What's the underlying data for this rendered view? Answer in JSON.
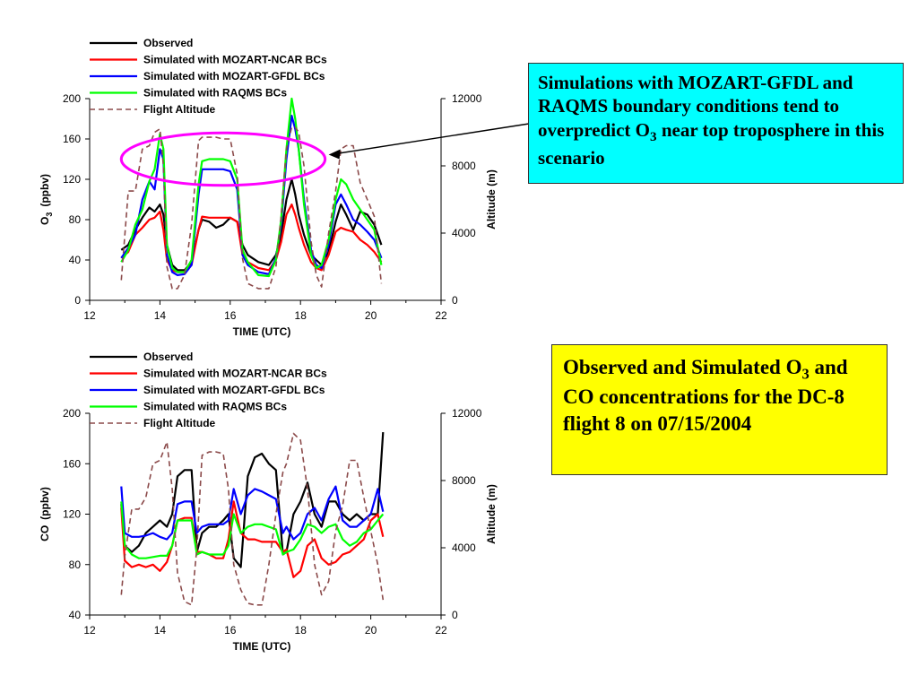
{
  "colors": {
    "observed": "#000000",
    "ncar": "#ff0000",
    "gfdl": "#0000ff",
    "raqms": "#00ff00",
    "altitude": "#8b4a4a",
    "ellipse": "#ff00ff",
    "cyan_box": "#00ffff",
    "yellow_box": "#ffff00"
  },
  "annotations": {
    "cyan_box": {
      "text_before": "Simulations with MOZART-GFDL and RAQMS boundary conditions tend to overpredict O",
      "sub": "3",
      "text_after": " near top troposphere in this scenario"
    },
    "yellow_box": {
      "text_before": "Observed and Simulated O",
      "sub": "3",
      "text_after": " and CO concentrations for the DC-8 flight 8 on 07/15/2004"
    }
  },
  "chart_data": [
    {
      "type": "line",
      "xlabel": "TIME (UTC)",
      "ylabel": "O",
      "ylabel_sub": "3",
      "ylabel_unit": "(ppbv)",
      "y2label": "Altitude (m)",
      "xlim": [
        12,
        22
      ],
      "xticks": [
        12,
        14,
        16,
        18,
        20,
        22
      ],
      "ylim": [
        0,
        200
      ],
      "yticks": [
        0,
        40,
        80,
        120,
        160,
        200
      ],
      "y2lim": [
        0,
        12000
      ],
      "y2ticks": [
        0,
        4000,
        8000,
        12000
      ],
      "legend": [
        "Observed",
        "Simulated with MOZART-NCAR BCs",
        "Simulated with MOZART-GFDL BCs",
        "Simulated with RAQMS BCs",
        "Flight Altitude"
      ],
      "highlight_ellipse": {
        "cx": 15.8,
        "cy": 140,
        "rx": 2.9,
        "ry": 26
      },
      "x": [
        12.9,
        13.1,
        13.3,
        13.5,
        13.7,
        13.85,
        14.0,
        14.1,
        14.2,
        14.35,
        14.5,
        14.7,
        14.9,
        15.1,
        15.2,
        15.4,
        15.6,
        15.8,
        16.0,
        16.2,
        16.35,
        16.5,
        16.8,
        17.1,
        17.3,
        17.45,
        17.6,
        17.75,
        17.85,
        17.95,
        18.1,
        18.3,
        18.45,
        18.6,
        18.8,
        19.0,
        19.15,
        19.3,
        19.5,
        19.7,
        19.9,
        20.1,
        20.3
      ],
      "series": [
        {
          "name": "Observed",
          "values": [
            50,
            55,
            70,
            82,
            92,
            88,
            95,
            85,
            55,
            35,
            30,
            30,
            38,
            70,
            80,
            78,
            72,
            75,
            82,
            78,
            55,
            45,
            38,
            35,
            45,
            65,
            100,
            120,
            105,
            85,
            65,
            45,
            40,
            35,
            48,
            78,
            95,
            85,
            70,
            88,
            85,
            75,
            55
          ]
        },
        {
          "name": "Simulated with MOZART-NCAR BCs",
          "values": [
            42,
            48,
            65,
            72,
            80,
            82,
            88,
            70,
            40,
            30,
            28,
            28,
            35,
            70,
            83,
            82,
            82,
            82,
            82,
            78,
            45,
            38,
            32,
            30,
            40,
            58,
            85,
            95,
            85,
            72,
            55,
            38,
            32,
            30,
            45,
            68,
            72,
            70,
            68,
            60,
            55,
            48,
            38
          ]
        },
        {
          "name": "Simulated with MOZART-GFDL BCs",
          "values": [
            42,
            52,
            65,
            100,
            118,
            110,
            150,
            140,
            45,
            28,
            25,
            26,
            35,
            105,
            130,
            130,
            130,
            130,
            128,
            110,
            45,
            35,
            28,
            26,
            42,
            75,
            140,
            183,
            170,
            150,
            100,
            50,
            35,
            32,
            55,
            95,
            105,
            95,
            80,
            75,
            68,
            60,
            42
          ]
        },
        {
          "name": "Simulated with RAQMS BCs",
          "values": [
            38,
            50,
            75,
            90,
            118,
            130,
            165,
            150,
            55,
            32,
            28,
            28,
            40,
            115,
            138,
            140,
            140,
            140,
            138,
            120,
            50,
            38,
            25,
            24,
            40,
            80,
            150,
            200,
            180,
            150,
            95,
            45,
            32,
            35,
            60,
            100,
            120,
            115,
            100,
            90,
            80,
            70,
            35
          ]
        },
        {
          "name": "Flight Altitude",
          "axis": "y2",
          "values": [
            1200,
            6500,
            6500,
            9000,
            9200,
            10000,
            10200,
            8000,
            2000,
            700,
            700,
            1500,
            4500,
            9500,
            9700,
            9700,
            9700,
            9600,
            9600,
            7500,
            2500,
            1000,
            700,
            700,
            2000,
            5000,
            9000,
            10300,
            10300,
            10000,
            8000,
            3500,
            1500,
            800,
            4000,
            6500,
            9000,
            9200,
            9200,
            7000,
            6000,
            5000,
            1000
          ]
        }
      ]
    },
    {
      "type": "line",
      "xlabel": "TIME (UTC)",
      "ylabel": "CO",
      "ylabel_unit": "(ppbv)",
      "y2label": "Altitude (m)",
      "xlim": [
        12,
        22
      ],
      "xticks": [
        12,
        14,
        16,
        18,
        20,
        22
      ],
      "ylim": [
        40,
        200
      ],
      "yticks": [
        40,
        80,
        120,
        160,
        200
      ],
      "y2lim": [
        0,
        12000
      ],
      "y2ticks": [
        0,
        4000,
        8000,
        12000
      ],
      "legend": [
        "Observed",
        "Simulated with MOZART-NCAR BCs",
        "Simulated with MOZART-GFDL BCs",
        "Simulated with RAQMS BCs",
        "Flight Altitude"
      ],
      "x": [
        12.9,
        13.0,
        13.2,
        13.4,
        13.6,
        13.8,
        14.0,
        14.2,
        14.35,
        14.5,
        14.7,
        14.9,
        15.05,
        15.2,
        15.4,
        15.6,
        15.8,
        15.95,
        16.1,
        16.3,
        16.5,
        16.7,
        16.9,
        17.1,
        17.3,
        17.5,
        17.6,
        17.8,
        18.0,
        18.2,
        18.4,
        18.6,
        18.8,
        19.0,
        19.2,
        19.4,
        19.6,
        19.8,
        20.0,
        20.2,
        20.35
      ],
      "series": [
        {
          "name": "Observed",
          "values": [
            128,
            95,
            90,
            95,
            105,
            110,
            115,
            110,
            120,
            150,
            155,
            155,
            90,
            105,
            110,
            110,
            115,
            120,
            85,
            78,
            150,
            165,
            168,
            160,
            155,
            88,
            90,
            120,
            130,
            145,
            120,
            110,
            130,
            130,
            120,
            115,
            120,
            115,
            120,
            120,
            185
          ]
        },
        {
          "name": "Simulated with MOZART-NCAR BCs",
          "values": [
            125,
            83,
            78,
            80,
            78,
            80,
            75,
            82,
            95,
            115,
            117,
            117,
            90,
            90,
            88,
            85,
            85,
            100,
            130,
            105,
            100,
            100,
            98,
            98,
            98,
            90,
            92,
            70,
            75,
            95,
            100,
            85,
            80,
            82,
            88,
            90,
            95,
            100,
            115,
            120,
            102
          ]
        },
        {
          "name": "Simulated with MOZART-GFDL BCs",
          "values": [
            142,
            105,
            102,
            102,
            103,
            105,
            102,
            100,
            105,
            128,
            130,
            130,
            105,
            110,
            112,
            112,
            112,
            115,
            140,
            120,
            135,
            140,
            138,
            135,
            132,
            105,
            110,
            100,
            105,
            120,
            125,
            115,
            132,
            142,
            115,
            110,
            110,
            115,
            120,
            140,
            122
          ]
        },
        {
          "name": "Simulated with RAQMS BCs",
          "values": [
            130,
            95,
            88,
            85,
            85,
            86,
            87,
            87,
            95,
            115,
            115,
            115,
            88,
            90,
            88,
            88,
            88,
            95,
            120,
            105,
            110,
            112,
            112,
            110,
            108,
            88,
            90,
            92,
            100,
            112,
            110,
            105,
            110,
            112,
            100,
            95,
            98,
            105,
            108,
            115,
            120
          ]
        },
        {
          "name": "Flight Altitude",
          "axis": "y2",
          "values": [
            1200,
            3500,
            6300,
            6300,
            7000,
            9000,
            9200,
            10300,
            7500,
            2500,
            800,
            600,
            4000,
            9500,
            9700,
            9700,
            9600,
            7500,
            3000,
            1500,
            700,
            600,
            600,
            3000,
            6000,
            8500,
            9000,
            10800,
            10400,
            7500,
            3000,
            1200,
            2000,
            5000,
            6500,
            9200,
            9200,
            7000,
            5000,
            3000,
            900
          ]
        }
      ]
    }
  ]
}
